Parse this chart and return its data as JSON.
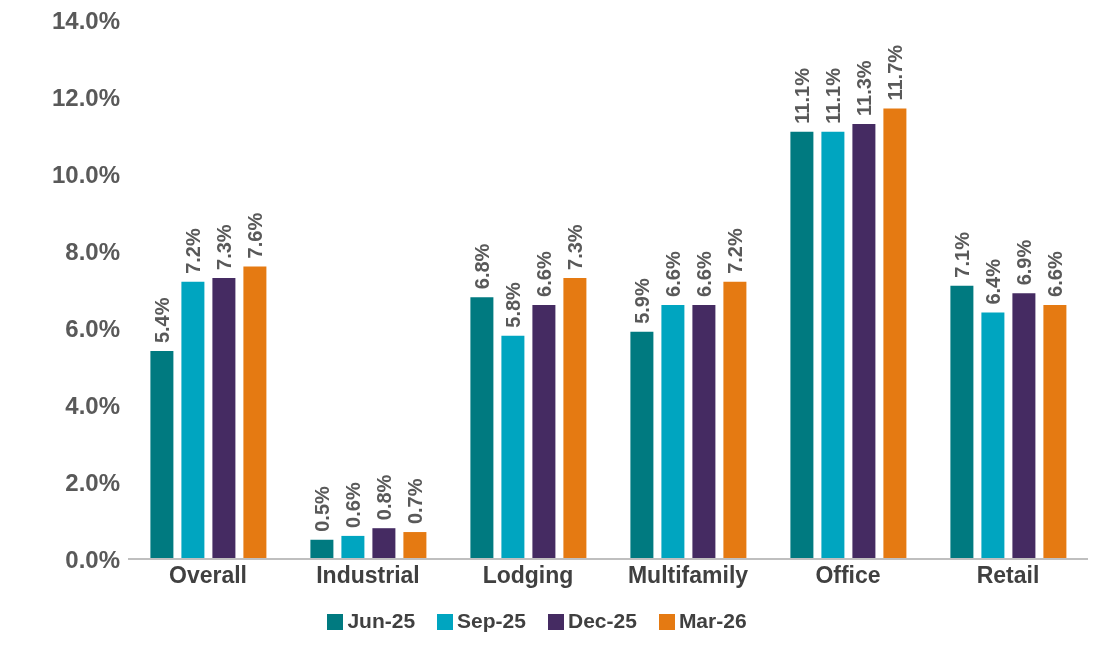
{
  "chart_data": {
    "type": "bar",
    "categories": [
      "Overall",
      "Industrial",
      "Lodging",
      "Multifamily",
      "Office",
      "Retail"
    ],
    "series": [
      {
        "name": "Jun-25",
        "color": "#007a80",
        "values": [
          5.4,
          0.5,
          6.8,
          5.9,
          11.1,
          7.1
        ],
        "value_labels": [
          "5.4%",
          "0.5%",
          "6.8%",
          "5.9%",
          "11.1%",
          "7.1%"
        ]
      },
      {
        "name": "Sep-25",
        "color": "#00a5c0",
        "values": [
          7.2,
          0.6,
          5.8,
          6.6,
          11.1,
          6.4
        ],
        "value_labels": [
          "7.2%",
          "0.6%",
          "5.8%",
          "6.6%",
          "11.1%",
          "6.4%"
        ]
      },
      {
        "name": "Dec-25",
        "color": "#452b62",
        "values": [
          7.3,
          0.8,
          6.6,
          6.6,
          11.3,
          6.9
        ],
        "value_labels": [
          "7.3%",
          "0.8%",
          "6.6%",
          "6.6%",
          "11.3%",
          "6.9%"
        ]
      },
      {
        "name": "Mar-26",
        "color": "#e57a12",
        "values": [
          7.6,
          0.7,
          7.3,
          7.2,
          11.7,
          6.6
        ],
        "value_labels": [
          "7.6%",
          "0.7%",
          "7.3%",
          "7.2%",
          "11.7%",
          "6.6%"
        ]
      }
    ],
    "ylim": [
      0,
      14
    ],
    "yticks": [
      {
        "value": 0,
        "label": "0.0%"
      },
      {
        "value": 2,
        "label": "2.0%"
      },
      {
        "value": 4,
        "label": "4.0%"
      },
      {
        "value": 6,
        "label": "6.0%"
      },
      {
        "value": 8,
        "label": "8.0%"
      },
      {
        "value": 10,
        "label": "10.0%"
      },
      {
        "value": 12,
        "label": "12.0%"
      },
      {
        "value": 14,
        "label": "14.0%"
      }
    ],
    "grid": false,
    "legend": "bottom"
  }
}
